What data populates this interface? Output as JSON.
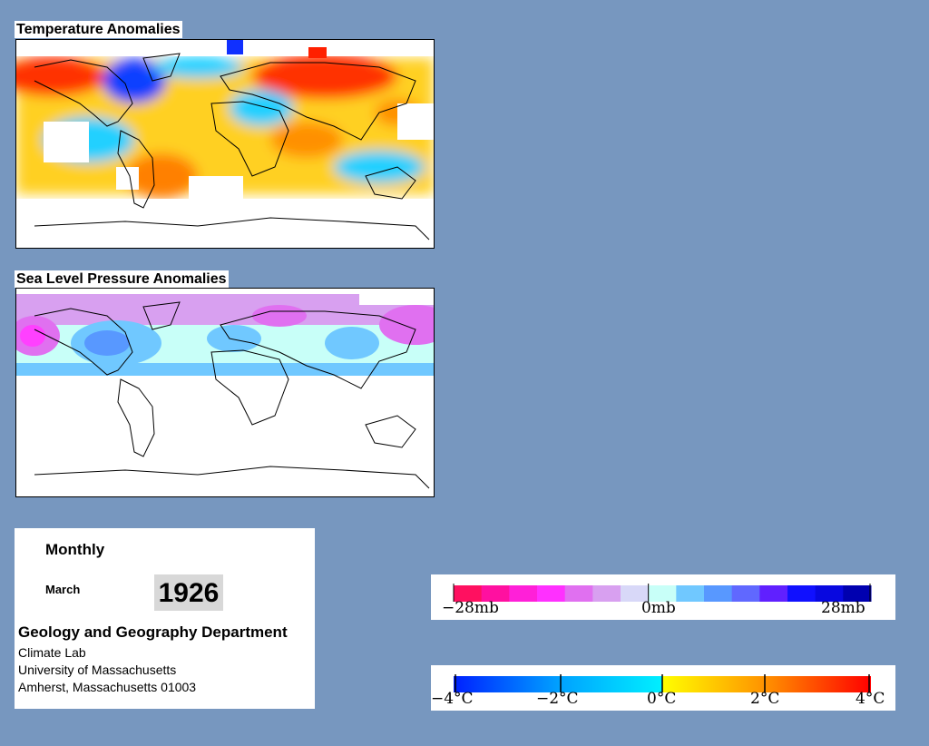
{
  "panels": {
    "temperature": {
      "title": "Temperature Anomalies"
    },
    "pressure": {
      "title": "Sea Level Pressure Anomalies"
    }
  },
  "info": {
    "period": "Monthly",
    "month": "March",
    "year": "1926",
    "department": "Geology and Geography Department",
    "lab": "Climate Lab",
    "university": "University of Massachusetts",
    "address": "Amherst, Massachusetts 01003"
  },
  "pressure_legend": {
    "colors": [
      "#ff1060",
      "#ff10a0",
      "#ff20d8",
      "#ff30ff",
      "#e070f0",
      "#d8a0f0",
      "#d8d8f8",
      "#c8fff8",
      "#70c8ff",
      "#5898ff",
      "#6068ff",
      "#6020ff",
      "#1010ff",
      "#0808e0",
      "#0000b0"
    ],
    "ticks": [
      "−28mb",
      "0mb",
      "28mb"
    ]
  },
  "temperature_legend": {
    "gradient_stops": [
      "#0020ff",
      "#00c8ff",
      "#ffff00",
      "#ff8000",
      "#ff0000"
    ],
    "ticks": [
      "−4°C",
      "−2°C",
      "0°C",
      "2°C",
      "4°C"
    ]
  }
}
